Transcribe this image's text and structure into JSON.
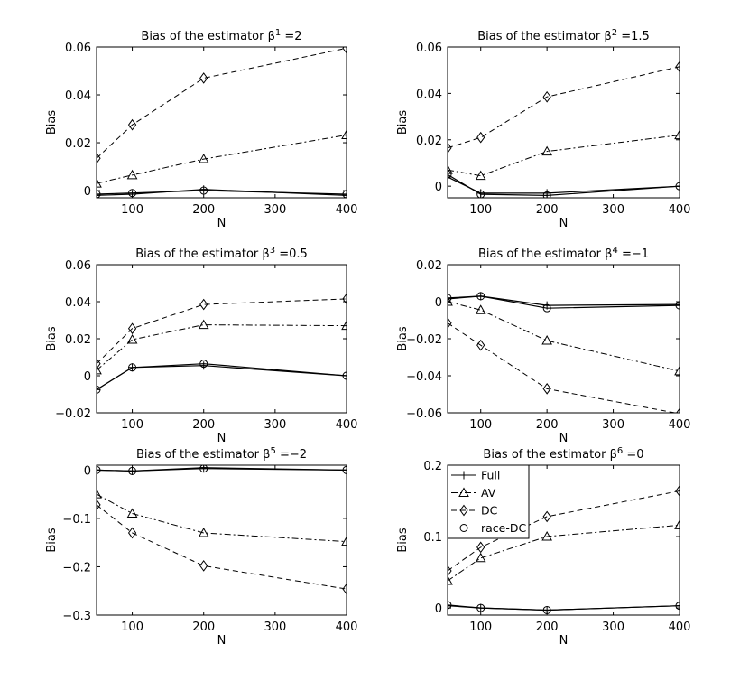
{
  "chart_data": [
    {
      "type": "line",
      "title": "Bias of the estimator",
      "beta_sup": "1",
      "title_value": "=2",
      "xlabel": "N",
      "ylabel": "Bias",
      "x": [
        50,
        100,
        200,
        400
      ],
      "xlim": [
        50,
        400
      ],
      "ylim": [
        -0.003,
        0.06
      ],
      "xticks": [
        100,
        200,
        300,
        400
      ],
      "xtick_labels": [
        "100",
        "200",
        "300",
        "400"
      ],
      "yticks": [
        0,
        0.02,
        0.04,
        0.06
      ],
      "ytick_labels": [
        "0",
        "0.02",
        "0.04",
        "0.06"
      ],
      "series": [
        {
          "name": "Full",
          "values": [
            -0.002,
            -0.0015,
            0.0005,
            -0.002
          ]
        },
        {
          "name": "AV",
          "values": [
            0.003,
            0.0065,
            0.0132,
            0.0232
          ]
        },
        {
          "name": "DC",
          "values": [
            0.0135,
            0.0275,
            0.047,
            0.0595
          ]
        },
        {
          "name": "race-DC",
          "values": [
            -0.0015,
            -0.001,
            0.0,
            -0.0015
          ]
        }
      ]
    },
    {
      "type": "line",
      "title": "Bias of the estimator",
      "beta_sup": "2",
      "title_value": "=1.5",
      "xlabel": "N",
      "ylabel": "Bias",
      "x": [
        50,
        100,
        200,
        400
      ],
      "xlim": [
        50,
        400
      ],
      "ylim": [
        -0.005,
        0.06
      ],
      "xticks": [
        100,
        200,
        300,
        400
      ],
      "xtick_labels": [
        "100",
        "200",
        "300",
        "400"
      ],
      "yticks": [
        0,
        0.02,
        0.04,
        0.06
      ],
      "ytick_labels": [
        "0",
        "0.02",
        "0.04",
        "0.06"
      ],
      "series": [
        {
          "name": "Full",
          "values": [
            0.004,
            -0.003,
            -0.003,
            0.0
          ]
        },
        {
          "name": "AV",
          "values": [
            0.007,
            0.0045,
            0.015,
            0.022
          ]
        },
        {
          "name": "DC",
          "values": [
            0.0165,
            0.021,
            0.0385,
            0.0515
          ]
        },
        {
          "name": "race-DC",
          "values": [
            0.005,
            -0.0035,
            -0.004,
            0.0
          ]
        }
      ]
    },
    {
      "type": "line",
      "title": "Bias of the estimator",
      "beta_sup": "3",
      "title_value": "=0.5",
      "xlabel": "N",
      "ylabel": "Bias",
      "x": [
        50,
        100,
        200,
        400
      ],
      "xlim": [
        50,
        400
      ],
      "ylim": [
        -0.02,
        0.06
      ],
      "xticks": [
        100,
        200,
        300,
        400
      ],
      "xtick_labels": [
        "100",
        "200",
        "300",
        "400"
      ],
      "yticks": [
        -0.02,
        0,
        0.02,
        0.04,
        0.06
      ],
      "ytick_labels": [
        "−0.02",
        "0",
        "0.02",
        "0.04",
        "0.06"
      ],
      "series": [
        {
          "name": "Full",
          "values": [
            -0.0075,
            0.0045,
            0.0055,
            0.0
          ]
        },
        {
          "name": "AV",
          "values": [
            0.003,
            0.0195,
            0.0275,
            0.027
          ]
        },
        {
          "name": "DC",
          "values": [
            0.0065,
            0.0255,
            0.0385,
            0.0415
          ]
        },
        {
          "name": "race-DC",
          "values": [
            -0.0075,
            0.0045,
            0.0065,
            0.0
          ]
        }
      ]
    },
    {
      "type": "line",
      "title": "Bias of the estimator",
      "beta_sup": "4",
      "title_value": "=−1",
      "xlabel": "N",
      "ylabel": "Bias",
      "x": [
        50,
        100,
        200,
        400
      ],
      "xlim": [
        50,
        400
      ],
      "ylim": [
        -0.06,
        0.02
      ],
      "xticks": [
        100,
        200,
        300,
        400
      ],
      "xtick_labels": [
        "100",
        "200",
        "300",
        "400"
      ],
      "yticks": [
        -0.06,
        -0.04,
        -0.02,
        0,
        0.02
      ],
      "ytick_labels": [
        "−0.06",
        "−0.04",
        "−0.02",
        "0",
        "0.02"
      ],
      "series": [
        {
          "name": "Full",
          "values": [
            0.0015,
            0.003,
            -0.002,
            -0.0015
          ]
        },
        {
          "name": "AV",
          "values": [
            0.0,
            -0.0045,
            -0.021,
            -0.0375
          ]
        },
        {
          "name": "DC",
          "values": [
            -0.0115,
            -0.0235,
            -0.047,
            -0.0605
          ]
        },
        {
          "name": "race-DC",
          "values": [
            0.002,
            0.003,
            -0.0035,
            -0.002
          ]
        }
      ]
    },
    {
      "type": "line",
      "title": "Bias of the estimator",
      "beta_sup": "5",
      "title_value": "=−2",
      "xlabel": "N",
      "ylabel": "Bias",
      "x": [
        50,
        100,
        200,
        400
      ],
      "xlim": [
        50,
        400
      ],
      "ylim": [
        -0.3,
        0.01
      ],
      "xticks": [
        100,
        200,
        300,
        400
      ],
      "xtick_labels": [
        "100",
        "200",
        "300",
        "400"
      ],
      "yticks": [
        -0.3,
        -0.2,
        -0.1,
        0
      ],
      "ytick_labels": [
        "−0.3",
        "−0.2",
        "−0.1",
        "0"
      ],
      "series": [
        {
          "name": "Full",
          "values": [
            0.0,
            -0.002,
            0.005,
            0.0
          ]
        },
        {
          "name": "AV",
          "values": [
            -0.05,
            -0.09,
            -0.13,
            -0.148
          ]
        },
        {
          "name": "DC",
          "values": [
            -0.072,
            -0.13,
            -0.198,
            -0.246
          ]
        },
        {
          "name": "race-DC",
          "values": [
            0.0,
            -0.002,
            0.003,
            0.0
          ]
        }
      ]
    },
    {
      "type": "line",
      "title": "Bias of the estimator",
      "beta_sup": "6",
      "title_value": "=0",
      "xlabel": "N",
      "ylabel": "Bias",
      "x": [
        50,
        100,
        200,
        400
      ],
      "xlim": [
        50,
        400
      ],
      "ylim": [
        -0.01,
        0.2
      ],
      "xticks": [
        100,
        200,
        300,
        400
      ],
      "xtick_labels": [
        "100",
        "200",
        "300",
        "400"
      ],
      "yticks": [
        0,
        0.1,
        0.2
      ],
      "ytick_labels": [
        "0",
        "0.1",
        "0.2"
      ],
      "series": [
        {
          "name": "Full",
          "values": [
            0.003,
            0.0,
            -0.003,
            0.003
          ]
        },
        {
          "name": "AV",
          "values": [
            0.038,
            0.07,
            0.1,
            0.116
          ]
        },
        {
          "name": "DC",
          "values": [
            0.052,
            0.085,
            0.128,
            0.164
          ]
        },
        {
          "name": "race-DC",
          "values": [
            0.004,
            0.0,
            -0.003,
            0.003
          ]
        }
      ],
      "legend": {
        "position": "top-left",
        "entries": [
          "Full",
          "AV",
          "DC",
          "race-DC"
        ]
      }
    }
  ],
  "styles": {
    "line_color": "#000000",
    "background": "#ffffff",
    "series_dash": {
      "Full": "",
      "AV": "7,3,2,3",
      "DC": "6,4",
      "race-DC": ""
    },
    "series_marker": {
      "Full": "plus",
      "AV": "triangle",
      "DC": "diamond",
      "race-DC": "circle"
    }
  }
}
